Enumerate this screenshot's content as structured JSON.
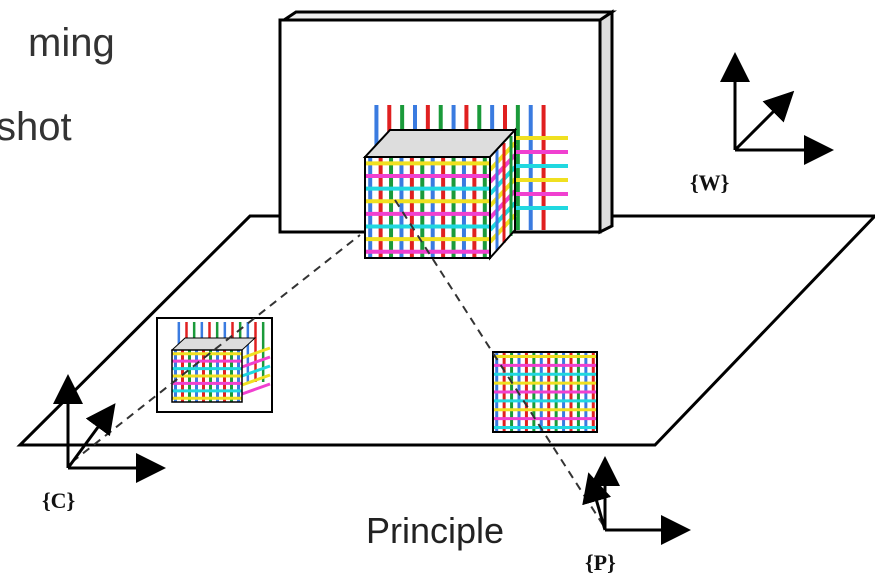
{
  "header": {
    "title_line1": "ming",
    "title_line2": "shot"
  },
  "diagram": {
    "labels": {
      "world": "{W}",
      "camera": "{C}",
      "projector": "{P}"
    },
    "caption": "Principle"
  }
}
